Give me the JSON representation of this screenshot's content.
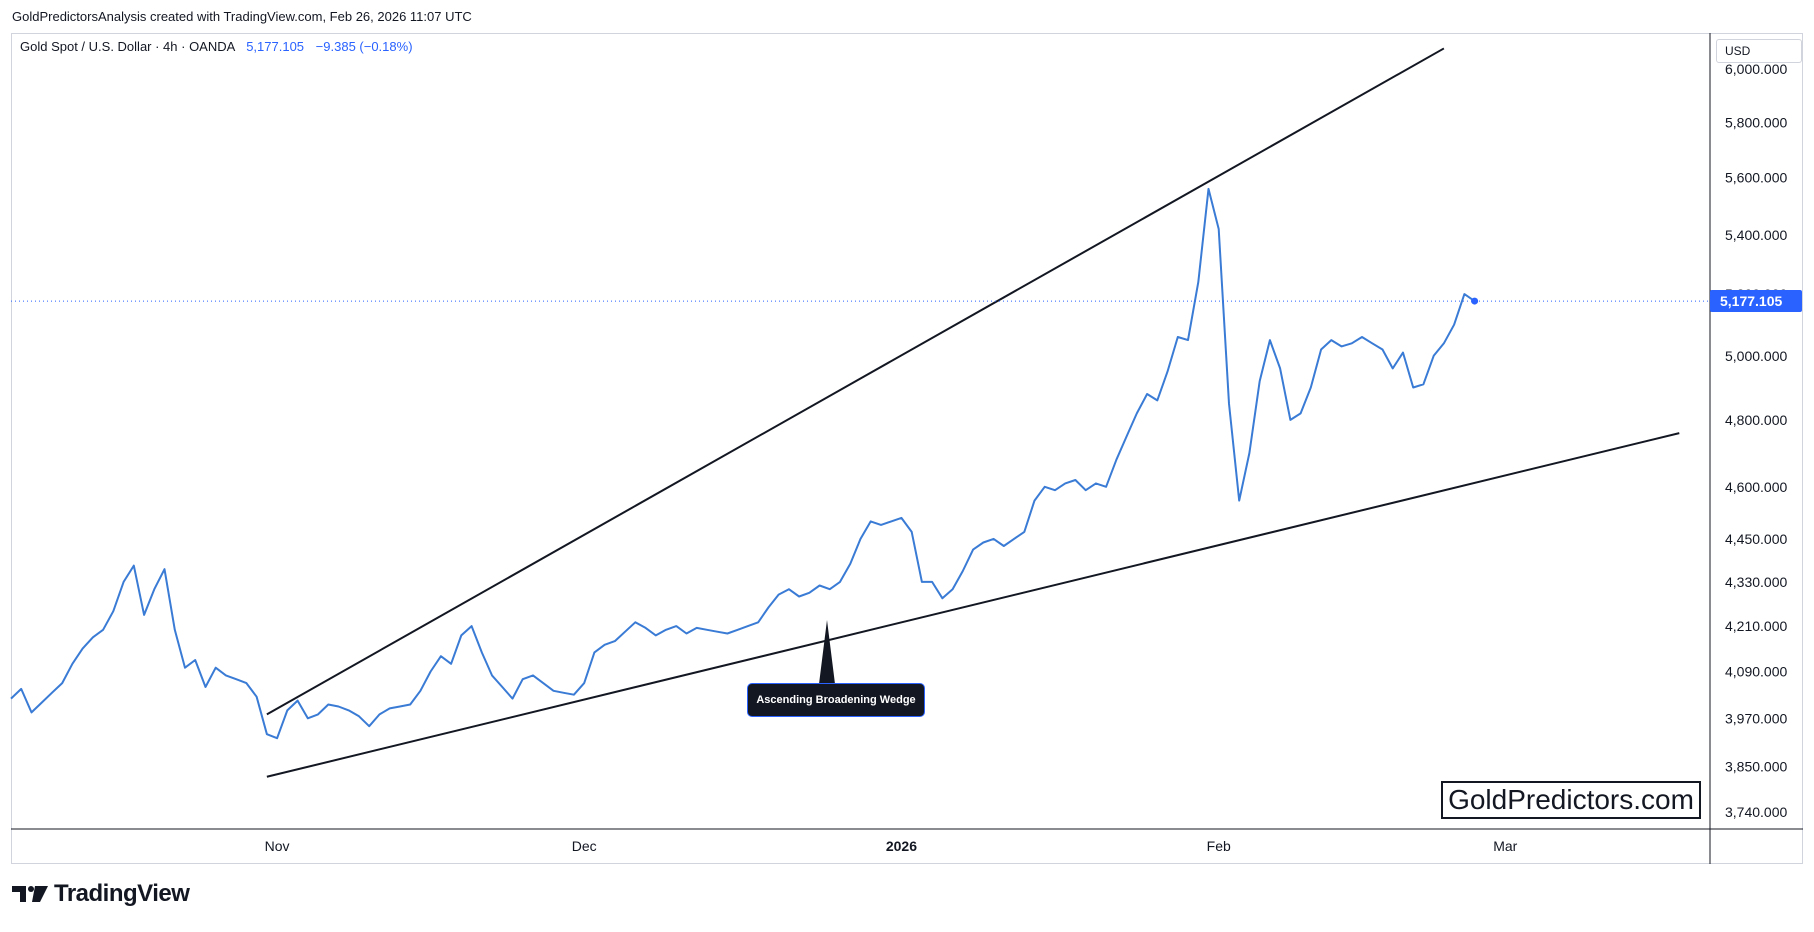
{
  "header": {
    "text": "GoldPredictorsAnalysis created with TradingView.com, Feb 26, 2026 11:07 UTC"
  },
  "symbol": {
    "name": "Gold Spot / U.S. Dollar · 4h · OANDA",
    "price": "5,177.105",
    "change": "−9.385 (−0.18%)"
  },
  "currency_label": "USD",
  "last_price_label": "5,177.105",
  "watermark": "GoldPredictors.com",
  "brand": "TradingView",
  "annotation": "Ascending Broadening Wedge",
  "colors": {
    "line": "#3a7bd5",
    "text": "#131722",
    "accent": "#2962ff",
    "trendline": "#131722"
  },
  "chart_data": {
    "type": "line",
    "title": "",
    "xlabel": "",
    "ylabel": "",
    "x_ticks": [
      {
        "label": "Nov",
        "date": "2025-11-01"
      },
      {
        "label": "Dec",
        "date": "2025-12-01"
      },
      {
        "label": "2026",
        "date": "2026-01-01",
        "bold": true
      },
      {
        "label": "Feb",
        "date": "2026-02-01"
      },
      {
        "label": "Mar",
        "date": "2026-03-01"
      }
    ],
    "y_ticks": [
      6000,
      5800,
      5600,
      5400,
      5200,
      5000,
      4800,
      4600,
      4450,
      4330,
      4210,
      4090,
      3970,
      3850,
      3740
    ],
    "y_tick_labels": [
      "6,000.000",
      "5,800.000",
      "5,600.000",
      "5,400.000",
      "5,200.000",
      "5,000.000",
      "4,800.000",
      "4,600.000",
      "4,450.000",
      "4,330.000",
      "4,210.000",
      "4,090.000",
      "3,970.000",
      "3,850.000",
      "3,740.000"
    ],
    "y_scale": "log",
    "ylim": [
      3700,
      6140
    ],
    "xlim": [
      "2025-10-06",
      "2026-03-21"
    ],
    "last_value": 5177.105,
    "series": [
      {
        "values": [
          [
            "2025-10-06",
            4020
          ],
          [
            "2025-10-07",
            4045
          ],
          [
            "2025-10-08",
            3985
          ],
          [
            "2025-10-09",
            4010
          ],
          [
            "2025-10-10",
            4035
          ],
          [
            "2025-10-11",
            4060
          ],
          [
            "2025-10-12",
            4110
          ],
          [
            "2025-10-13",
            4150
          ],
          [
            "2025-10-14",
            4180
          ],
          [
            "2025-10-15",
            4200
          ],
          [
            "2025-10-16",
            4250
          ],
          [
            "2025-10-17",
            4330
          ],
          [
            "2025-10-18",
            4375
          ],
          [
            "2025-10-19",
            4240
          ],
          [
            "2025-10-20",
            4310
          ],
          [
            "2025-10-21",
            4365
          ],
          [
            "2025-10-22",
            4200
          ],
          [
            "2025-10-23",
            4100
          ],
          [
            "2025-10-24",
            4120
          ],
          [
            "2025-10-25",
            4050
          ],
          [
            "2025-10-26",
            4100
          ],
          [
            "2025-10-27",
            4080
          ],
          [
            "2025-10-28",
            4070
          ],
          [
            "2025-10-29",
            4060
          ],
          [
            "2025-10-30",
            4025
          ],
          [
            "2025-10-31",
            3930
          ],
          [
            "2025-11-01",
            3920
          ],
          [
            "2025-11-02",
            3990
          ],
          [
            "2025-11-03",
            4015
          ],
          [
            "2025-11-04",
            3970
          ],
          [
            "2025-11-05",
            3980
          ],
          [
            "2025-11-06",
            4005
          ],
          [
            "2025-11-07",
            4000
          ],
          [
            "2025-11-08",
            3990
          ],
          [
            "2025-11-09",
            3975
          ],
          [
            "2025-11-10",
            3950
          ],
          [
            "2025-11-11",
            3980
          ],
          [
            "2025-11-12",
            3995
          ],
          [
            "2025-11-13",
            4000
          ],
          [
            "2025-11-14",
            4005
          ],
          [
            "2025-11-15",
            4040
          ],
          [
            "2025-11-16",
            4090
          ],
          [
            "2025-11-17",
            4130
          ],
          [
            "2025-11-18",
            4110
          ],
          [
            "2025-11-19",
            4185
          ],
          [
            "2025-11-20",
            4210
          ],
          [
            "2025-11-21",
            4140
          ],
          [
            "2025-11-22",
            4080
          ],
          [
            "2025-11-23",
            4050
          ],
          [
            "2025-11-24",
            4020
          ],
          [
            "2025-11-25",
            4070
          ],
          [
            "2025-11-26",
            4080
          ],
          [
            "2025-11-27",
            4060
          ],
          [
            "2025-11-28",
            4040
          ],
          [
            "2025-11-29",
            4035
          ],
          [
            "2025-11-30",
            4030
          ],
          [
            "2025-12-01",
            4060
          ],
          [
            "2025-12-02",
            4140
          ],
          [
            "2025-12-03",
            4160
          ],
          [
            "2025-12-04",
            4170
          ],
          [
            "2025-12-05",
            4195
          ],
          [
            "2025-12-06",
            4220
          ],
          [
            "2025-12-07",
            4205
          ],
          [
            "2025-12-08",
            4185
          ],
          [
            "2025-12-09",
            4200
          ],
          [
            "2025-12-10",
            4210
          ],
          [
            "2025-12-11",
            4190
          ],
          [
            "2025-12-12",
            4205
          ],
          [
            "2025-12-13",
            4200
          ],
          [
            "2025-12-14",
            4195
          ],
          [
            "2025-12-15",
            4190
          ],
          [
            "2025-12-16",
            4200
          ],
          [
            "2025-12-17",
            4210
          ],
          [
            "2025-12-18",
            4220
          ],
          [
            "2025-12-19",
            4260
          ],
          [
            "2025-12-20",
            4295
          ],
          [
            "2025-12-21",
            4310
          ],
          [
            "2025-12-22",
            4290
          ],
          [
            "2025-12-23",
            4300
          ],
          [
            "2025-12-24",
            4320
          ],
          [
            "2025-12-25",
            4310
          ],
          [
            "2025-12-26",
            4330
          ],
          [
            "2025-12-27",
            4380
          ],
          [
            "2025-12-28",
            4450
          ],
          [
            "2025-12-29",
            4500
          ],
          [
            "2025-12-30",
            4490
          ],
          [
            "2025-12-31",
            4500
          ],
          [
            "2026-01-01",
            4510
          ],
          [
            "2026-01-02",
            4470
          ],
          [
            "2026-01-03",
            4330
          ],
          [
            "2026-01-04",
            4330
          ],
          [
            "2026-01-05",
            4285
          ],
          [
            "2026-01-06",
            4310
          ],
          [
            "2026-01-07",
            4360
          ],
          [
            "2026-01-08",
            4420
          ],
          [
            "2026-01-09",
            4440
          ],
          [
            "2026-01-10",
            4450
          ],
          [
            "2026-01-11",
            4430
          ],
          [
            "2026-01-12",
            4450
          ],
          [
            "2026-01-13",
            4470
          ],
          [
            "2026-01-14",
            4560
          ],
          [
            "2026-01-15",
            4600
          ],
          [
            "2026-01-16",
            4590
          ],
          [
            "2026-01-17",
            4610
          ],
          [
            "2026-01-18",
            4620
          ],
          [
            "2026-01-19",
            4590
          ],
          [
            "2026-01-20",
            4610
          ],
          [
            "2026-01-21",
            4600
          ],
          [
            "2026-01-22",
            4680
          ],
          [
            "2026-01-23",
            4750
          ],
          [
            "2026-01-24",
            4820
          ],
          [
            "2026-01-25",
            4880
          ],
          [
            "2026-01-26",
            4860
          ],
          [
            "2026-01-27",
            4950
          ],
          [
            "2026-01-28",
            5060
          ],
          [
            "2026-01-29",
            5050
          ],
          [
            "2026-01-30",
            5240
          ],
          [
            "2026-01-31",
            5560
          ],
          [
            "2026-02-01",
            5420
          ],
          [
            "2026-02-02",
            4850
          ],
          [
            "2026-02-03",
            4560
          ],
          [
            "2026-02-04",
            4700
          ],
          [
            "2026-02-05",
            4920
          ],
          [
            "2026-02-06",
            5050
          ],
          [
            "2026-02-07",
            4960
          ],
          [
            "2026-02-08",
            4800
          ],
          [
            "2026-02-09",
            4820
          ],
          [
            "2026-02-10",
            4900
          ],
          [
            "2026-02-11",
            5020
          ],
          [
            "2026-02-12",
            5050
          ],
          [
            "2026-02-13",
            5030
          ],
          [
            "2026-02-14",
            5040
          ],
          [
            "2026-02-15",
            5060
          ],
          [
            "2026-02-16",
            5040
          ],
          [
            "2026-02-17",
            5020
          ],
          [
            "2026-02-18",
            4960
          ],
          [
            "2026-02-19",
            5010
          ],
          [
            "2026-02-20",
            4900
          ],
          [
            "2026-02-21",
            4910
          ],
          [
            "2026-02-22",
            5000
          ],
          [
            "2026-02-23",
            5040
          ],
          [
            "2026-02-24",
            5100
          ],
          [
            "2026-02-25",
            5200
          ],
          [
            "2026-02-26",
            5177.105
          ]
        ]
      }
    ],
    "trendlines": [
      {
        "label": "upper",
        "start": [
          "2025-10-31",
          3980
        ],
        "end": [
          "2026-02-23",
          6080
        ]
      },
      {
        "label": "lower",
        "start": [
          "2025-10-31",
          3825
        ],
        "end": [
          "2026-03-18",
          4760
        ]
      }
    ]
  }
}
